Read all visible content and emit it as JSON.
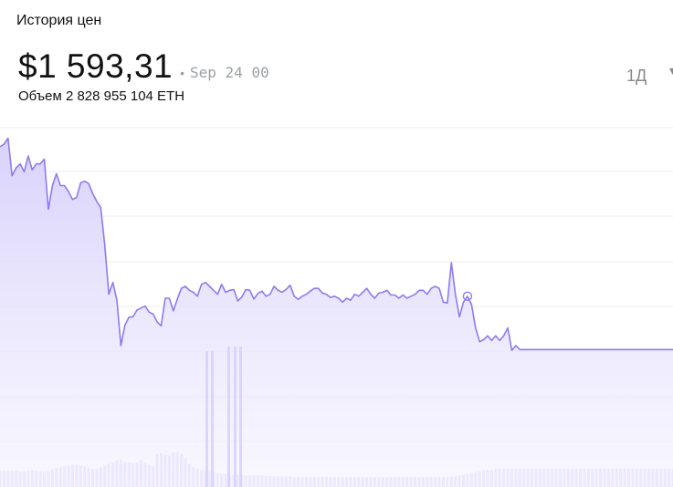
{
  "header": {
    "title": "История цен",
    "price": "$1 593,31",
    "dot": "•",
    "timestamp": "Sep 24 00",
    "volume": "Объем 2 828 955 104 ETH",
    "range_label": "1Д",
    "range_next": "▾"
  },
  "colors": {
    "line": "#8c7cf0",
    "area_top": "#d7d0fb",
    "area_bottom": "#f4f2fe",
    "volume": "#e2dcfc",
    "grid": "#ececf2"
  },
  "chart_data": {
    "type": "area",
    "title": "",
    "xlabel": "",
    "ylabel": "",
    "ylim": [
      1600,
      1675
    ],
    "grid": true,
    "legend": "none",
    "marker_index": 116,
    "x": [
      0,
      1,
      2,
      3,
      4,
      5,
      6,
      7,
      8,
      9,
      10,
      11,
      12,
      13,
      14,
      15,
      16,
      17,
      18,
      19,
      20,
      21,
      22,
      23,
      24,
      25,
      26,
      27,
      28,
      29,
      30,
      31,
      32,
      33,
      34,
      35,
      36,
      37,
      38,
      39,
      40,
      41,
      42,
      43,
      44,
      45,
      46,
      47,
      48,
      49,
      50,
      51,
      52,
      53,
      54,
      55,
      56,
      57,
      58,
      59,
      60,
      61,
      62,
      63,
      64,
      65,
      66,
      67,
      68,
      69,
      70,
      71,
      72,
      73,
      74,
      75,
      76,
      77,
      78,
      79,
      80,
      81,
      82,
      83,
      84,
      85,
      86,
      87,
      88,
      89,
      90,
      91,
      92,
      93,
      94,
      95,
      96,
      97,
      98,
      99,
      100,
      101,
      102,
      103,
      104,
      105,
      106,
      107,
      108,
      109,
      110,
      111,
      112,
      113,
      114,
      115,
      116,
      117,
      118,
      119,
      120,
      121,
      122,
      123,
      124,
      125,
      126,
      127,
      128,
      129,
      130,
      131,
      132,
      133,
      134,
      135,
      136,
      137,
      138,
      139,
      140,
      141,
      142,
      143,
      144,
      145,
      146,
      147,
      148,
      149,
      150,
      151,
      152,
      153,
      154,
      155,
      156,
      157,
      158,
      159,
      160,
      161,
      162,
      163,
      164,
      165,
      166,
      167
    ],
    "values": [
      1671.3,
      1672.0,
      1673.5,
      1664.0,
      1666.0,
      1667.0,
      1665.0,
      1669.0,
      1665.5,
      1667.0,
      1667.0,
      1668.2,
      1655.5,
      1661.5,
      1664.5,
      1661.5,
      1661.5,
      1660.0,
      1658.0,
      1658.5,
      1662.2,
      1662.6,
      1662.0,
      1659.5,
      1657.5,
      1656.0,
      1646.5,
      1634.0,
      1637.0,
      1632.5,
      1621.0,
      1626.2,
      1628.2,
      1628.3,
      1630.0,
      1630.5,
      1631.0,
      1629.5,
      1629.0,
      1627.0,
      1626.0,
      1633.0,
      1633.0,
      1629.8,
      1632.8,
      1635.5,
      1636.0,
      1635.0,
      1634.5,
      1633.5,
      1636.5,
      1637.0,
      1636.0,
      1635.0,
      1634.0,
      1636.5,
      1634.5,
      1635.0,
      1635.2,
      1632.3,
      1633.3,
      1635.2,
      1635.0,
      1632.8,
      1634.2,
      1634.8,
      1633.5,
      1634.0,
      1636.0,
      1635.0,
      1634.5,
      1635.2,
      1636.3,
      1633.5,
      1632.7,
      1633.5,
      1634.0,
      1634.8,
      1635.5,
      1635.5,
      1634.3,
      1634.0,
      1633.2,
      1633.5,
      1633.0,
      1632.0,
      1633.0,
      1632.5,
      1634.0,
      1633.5,
      1634.5,
      1635.5,
      1634.0,
      1633.0,
      1634.3,
      1634.5,
      1635.0,
      1633.8,
      1633.8,
      1633.0,
      1633.8,
      1633.0,
      1633.5,
      1634.0,
      1635.0,
      1635.0,
      1634.0,
      1635.5,
      1636.0,
      1635.5,
      1632.0,
      1631.8,
      1642.0,
      1634.0,
      1628.3,
      1632.0,
      1633.5,
      1631.5,
      1625.5,
      1622.0,
      1622.5,
      1623.5,
      1622.3,
      1623.5,
      1622.3,
      1623.5,
      1625.5,
      1619.8,
      1621.0,
      1620.0,
      1620.0,
      1620.0,
      1620.0,
      1620.0,
      1620.0,
      1620.0,
      1620.0,
      1620.0,
      1620.0,
      1620.0,
      1620.0,
      1620.0,
      1620.0,
      1620.0,
      1620.0,
      1620.0,
      1620.0,
      1620.0,
      1620.0,
      1620.0,
      1620.0,
      1620.0,
      1620.0,
      1620.0,
      1620.0,
      1620.0,
      1620.0,
      1620.0,
      1620.0,
      1620.0,
      1620.0,
      1620.0,
      1620.0,
      1620.0,
      1620.0,
      1620.0,
      1620.0,
      1620.0
    ],
    "volume": [
      40,
      40,
      40,
      40,
      40,
      38,
      38,
      40,
      40,
      40,
      38,
      36,
      38,
      44,
      46,
      48,
      50,
      52,
      54,
      54,
      52,
      50,
      46,
      44,
      44,
      48,
      52,
      56,
      60,
      64,
      66,
      62,
      60,
      58,
      60,
      66,
      58,
      54,
      50,
      80,
      82,
      78,
      76,
      84,
      84,
      80,
      70,
      56,
      48,
      44,
      42,
      40,
      38,
      36,
      34,
      32,
      32,
      30,
      30,
      30,
      30,
      28,
      28,
      28,
      28,
      28,
      26,
      26,
      26,
      26,
      26,
      26,
      26,
      24,
      24,
      24,
      24,
      24,
      24,
      24,
      24,
      24,
      24,
      24,
      24,
      24,
      24,
      24,
      24,
      24,
      24,
      24,
      24,
      24,
      24,
      24,
      24,
      24,
      24,
      24,
      24,
      24,
      24,
      24,
      24,
      24,
      24,
      24,
      24,
      24,
      24,
      24,
      26,
      26,
      28,
      30,
      32,
      34,
      36,
      38,
      40,
      42,
      42,
      44,
      44,
      44,
      44,
      44,
      44,
      44,
      44,
      44,
      44,
      44,
      44,
      44,
      44,
      44,
      44,
      44,
      44,
      44,
      44,
      44,
      44,
      44,
      44,
      44,
      44,
      44,
      44,
      44,
      44,
      44,
      44,
      44,
      44,
      44,
      44,
      44,
      44,
      44,
      44,
      44,
      44,
      44,
      44,
      44
    ]
  }
}
